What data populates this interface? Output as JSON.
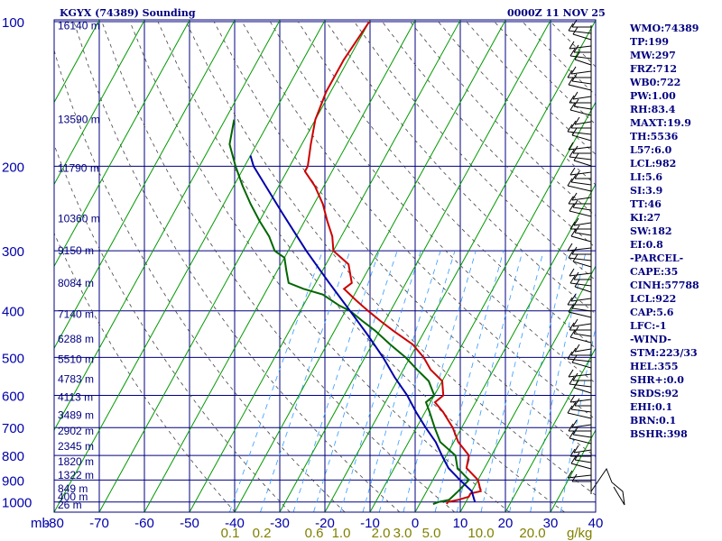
{
  "header": {
    "station_title": "KGYX (74389) Sounding",
    "valid_time": "0000Z 11 NOV 25"
  },
  "indices": [
    "WMO:74389",
    "TP:199",
    "MW:297",
    "FRZ:712",
    "WB0:722",
    "PW:1.00",
    "RH:83.4",
    "MAXT:19.9",
    "TH:5536",
    "L57:6.0",
    "LCL:982",
    "LI:5.6",
    "SI:3.9",
    "TT:46",
    "KI:27",
    "SW:182",
    "EI:0.8",
    "-PARCEL-",
    "CAPE:35",
    "CINH:57788",
    "LCL:922",
    "CAP:5.6",
    "LFC:-1",
    "-WIND-",
    "STM:223/33",
    "HEL:355",
    "SHR+:0.0",
    "SRDS:92",
    "EHI:0.1",
    "BRN:0.1",
    "BSHR:398"
  ],
  "colors": {
    "grid": "#000080",
    "isotherm": "#009900",
    "temperature": "#cc0000",
    "dewpoint": "#006600",
    "parcel": "#0000aa",
    "mixing_ratio": "#3399ff",
    "axis_text": "#0000aa",
    "mixing_text": "#808000"
  },
  "chart_data": {
    "type": "line",
    "title": "KGYX (74389) Sounding",
    "subtitle": "0000Z 11 NOV 25",
    "xlabel": "mb",
    "x_unit_label": "g/kg",
    "temperature_ticks": [
      "-80",
      "-70",
      "-60",
      "-50",
      "-40",
      "-30",
      "-20",
      "-10",
      "0",
      "10",
      "20",
      "30",
      "40"
    ],
    "mixing_ratio_labels": [
      "0.1",
      "0.2",
      "0.6",
      "1.0",
      "2.0",
      "3.0",
      "5.0",
      "10.0",
      "20.0"
    ],
    "pressure_ticks": [
      "100",
      "200",
      "300",
      "400",
      "500",
      "600",
      "700",
      "800",
      "900",
      "1000"
    ],
    "height_labels": [
      {
        "p": 102,
        "label": "16140 m"
      },
      {
        "p": 160,
        "label": "13590 m"
      },
      {
        "p": 202,
        "label": "11790 m"
      },
      {
        "p": 257,
        "label": "10360 m"
      },
      {
        "p": 300,
        "label": "9150 m"
      },
      {
        "p": 350,
        "label": "8084 m"
      },
      {
        "p": 407,
        "label": "7140 m"
      },
      {
        "p": 458,
        "label": "6288 m"
      },
      {
        "p": 505,
        "label": "5510 m"
      },
      {
        "p": 555,
        "label": "4783 m"
      },
      {
        "p": 605,
        "label": "4113 m"
      },
      {
        "p": 660,
        "label": "3489 m"
      },
      {
        "p": 712,
        "label": "2902 m"
      },
      {
        "p": 766,
        "label": "2345 m"
      },
      {
        "p": 825,
        "label": "1820 m"
      },
      {
        "p": 880,
        "label": "1322 m"
      },
      {
        "p": 938,
        "label": "849 m"
      },
      {
        "p": 975,
        "label": "400 m"
      },
      {
        "p": 1015,
        "label": "26 m"
      }
    ],
    "ylim": [
      100,
      1050
    ],
    "xlim": [
      -80,
      40
    ],
    "skew": true,
    "grid": true,
    "series": [
      {
        "key": "temperature",
        "points": [
          [
            950,
            12
          ],
          [
            960,
            10
          ],
          [
            975,
            10
          ],
          [
            990,
            8
          ],
          [
            1000,
            6
          ],
          [
            1005,
            6
          ],
          [
            1010,
            6
          ],
          [
            900,
            10
          ],
          [
            850,
            6
          ],
          [
            800,
            5
          ],
          [
            750,
            1
          ],
          [
            700,
            -2
          ],
          [
            650,
            -6
          ],
          [
            620,
            -9
          ],
          [
            600,
            -8
          ],
          [
            560,
            -10
          ],
          [
            530,
            -14
          ],
          [
            500,
            -17
          ],
          [
            470,
            -21
          ],
          [
            440,
            -27
          ],
          [
            420,
            -31
          ],
          [
            400,
            -35
          ],
          [
            380,
            -39
          ],
          [
            360,
            -43
          ],
          [
            350,
            -42
          ],
          [
            320,
            -45
          ],
          [
            300,
            -50
          ],
          [
            280,
            -52
          ],
          [
            260,
            -55
          ],
          [
            240,
            -58
          ],
          [
            220,
            -62
          ],
          [
            205,
            -66
          ],
          [
            200,
            -66
          ],
          [
            180,
            -68
          ],
          [
            160,
            -70
          ],
          [
            140,
            -71
          ],
          [
            120,
            -71
          ],
          [
            100,
            -70
          ]
        ]
      },
      {
        "key": "dewpoint",
        "points": [
          [
            990,
            6
          ],
          [
            1000,
            4
          ],
          [
            1010,
            3
          ],
          [
            950,
            7
          ],
          [
            900,
            8
          ],
          [
            850,
            4
          ],
          [
            800,
            2
          ],
          [
            750,
            -3
          ],
          [
            700,
            -6
          ],
          [
            650,
            -9
          ],
          [
            620,
            -11
          ],
          [
            600,
            -10
          ],
          [
            560,
            -13
          ],
          [
            530,
            -17
          ],
          [
            500,
            -21
          ],
          [
            470,
            -26
          ],
          [
            440,
            -31
          ],
          [
            420,
            -35
          ],
          [
            400,
            -39
          ],
          [
            390,
            -42
          ],
          [
            370,
            -47
          ],
          [
            360,
            -52
          ],
          [
            350,
            -56
          ],
          [
            330,
            -58
          ],
          [
            310,
            -60
          ],
          [
            300,
            -63
          ],
          [
            280,
            -66
          ],
          [
            260,
            -70
          ],
          [
            240,
            -74
          ],
          [
            220,
            -78
          ],
          [
            200,
            -82
          ],
          [
            180,
            -86
          ],
          [
            160,
            -88
          ]
        ]
      },
      {
        "key": "parcel",
        "points": [
          [
            1000,
            12
          ],
          [
            950,
            10
          ],
          [
            900,
            6
          ],
          [
            850,
            2
          ],
          [
            800,
            -1
          ],
          [
            750,
            -4
          ],
          [
            700,
            -8
          ],
          [
            650,
            -12
          ],
          [
            600,
            -16
          ],
          [
            550,
            -21
          ],
          [
            500,
            -26
          ],
          [
            450,
            -32
          ],
          [
            400,
            -39
          ],
          [
            350,
            -47
          ],
          [
            300,
            -56
          ],
          [
            250,
            -66
          ],
          [
            200,
            -78
          ],
          [
            190,
            -80
          ]
        ]
      }
    ]
  }
}
